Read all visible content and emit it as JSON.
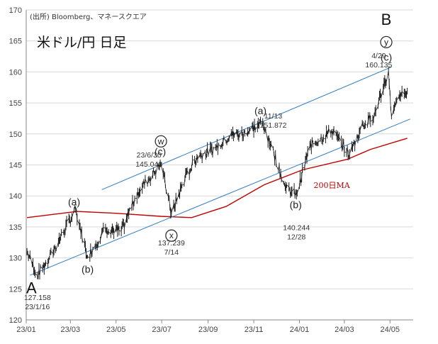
{
  "source_note": "(出所) Bloomberg、マネースクエア",
  "title": "米ドル/円 日足",
  "chart_data": {
    "type": "line",
    "x_tick_labels": [
      "23/01",
      "23/03",
      "23/05",
      "23/07",
      "23/09",
      "23/11",
      "24/01",
      "24/03",
      "24/05"
    ],
    "y_ticks": [
      120,
      125,
      130,
      135,
      140,
      145,
      150,
      155,
      160,
      165,
      170
    ],
    "ylim": [
      120,
      170
    ],
    "grid": true,
    "ohlc_series": {
      "name": "USD/JPY",
      "x": [
        "2023-01-02",
        "2023-01-16",
        "2023-02-01",
        "2023-03-08",
        "2023-03-24",
        "2023-04-17",
        "2023-05-08",
        "2023-05-30",
        "2023-06-30",
        "2023-07-14",
        "2023-08-01",
        "2023-08-17",
        "2023-09-12",
        "2023-10-03",
        "2023-10-20",
        "2023-11-13",
        "2023-11-28",
        "2023-12-14",
        "2023-12-28",
        "2024-01-15",
        "2024-02-13",
        "2024-03-08",
        "2024-03-26",
        "2024-04-10",
        "2024-04-29",
        "2024-05-03",
        "2024-05-14",
        "2024-05-24"
      ],
      "y": [
        131.0,
        127.158,
        130.0,
        137.8,
        130.2,
        134.8,
        134.3,
        140.7,
        145.048,
        137.239,
        142.8,
        146.3,
        147.7,
        149.8,
        150.1,
        151.872,
        146.8,
        141.1,
        140.244,
        148.1,
        150.5,
        146.7,
        151.6,
        153.1,
        160.135,
        152.8,
        156.2,
        156.9
      ]
    },
    "ma_series": {
      "name": "200日MA",
      "x": [
        "2023-01-02",
        "2023-03-10",
        "2023-05-01",
        "2023-06-30",
        "2023-08-10",
        "2023-09-25",
        "2023-11-15",
        "2024-01-05",
        "2024-03-05",
        "2024-04-05",
        "2024-05-24"
      ],
      "y": [
        136.5,
        137.5,
        137.2,
        136.7,
        136.5,
        138.3,
        141.8,
        144.2,
        145.9,
        147.5,
        149.3
      ]
    },
    "channel_lines": [
      {
        "from": [
          "2023-04-12",
          141.0
        ],
        "to": [
          "2024-05-03",
          160.8
        ]
      },
      {
        "from": [
          "2023-01-06",
          127.2
        ],
        "to": [
          "2024-05-28",
          152.4
        ]
      }
    ],
    "wave_labels": [
      {
        "text": "A",
        "x": "2023-01-08",
        "y": 124.3,
        "size": "big"
      },
      {
        "text": "(a)",
        "x": "2023-03-06",
        "y": 138.5,
        "size": "mid"
      },
      {
        "text": "(b)",
        "x": "2023-03-24",
        "y": 127.6,
        "size": "mid"
      },
      {
        "text": "(c)",
        "x": "2023-06-29",
        "y": 146.6,
        "size": "mid"
      },
      {
        "text": "(a)",
        "x": "2023-11-10",
        "y": 153.2,
        "size": "mid"
      },
      {
        "text": "(b)",
        "x": "2023-12-27",
        "y": 138.0,
        "size": "mid"
      },
      {
        "text": "(c)",
        "x": "2024-04-26",
        "y": 161.8,
        "size": "mid"
      },
      {
        "text": "B",
        "x": "2024-04-26",
        "y": 167.6,
        "size": "big"
      }
    ],
    "circled_labels": [
      {
        "text": "w",
        "x": "2023-06-30",
        "y": 148.8
      },
      {
        "text": "x",
        "x": "2023-07-14",
        "y": 133.6
      },
      {
        "text": "y",
        "x": "2024-04-26",
        "y": 164.8
      }
    ],
    "annotations": [
      {
        "lines": [
          "127.158",
          "23/1/16"
        ],
        "x": "2023-01-16",
        "y": 123.2
      },
      {
        "lines": [
          "23/6/30",
          "145.048"
        ],
        "x": "2023-06-14",
        "y": 146.2
      },
      {
        "lines": [
          "137.239",
          "7/14"
        ],
        "x": "2023-07-14",
        "y": 132.0
      },
      {
        "lines": [
          "11/13",
          "151.872"
        ],
        "x": "2023-11-27",
        "y": 152.5
      },
      {
        "lines": [
          "140.244",
          "12/28"
        ],
        "x": "2023-12-28",
        "y": 134.5
      },
      {
        "lines": [
          "4/29",
          "160.135"
        ],
        "x": "2024-04-16",
        "y": 162.2
      }
    ],
    "ma_label": "200日MA",
    "ma_label_pos": {
      "x": "2024-01-20",
      "y": 141.3
    },
    "colors": {
      "price": "#1f1f1f",
      "ma": "#c00000",
      "channel": "#2e7bc4",
      "axis": "#888888",
      "grid": "#d9d9d9"
    }
  }
}
